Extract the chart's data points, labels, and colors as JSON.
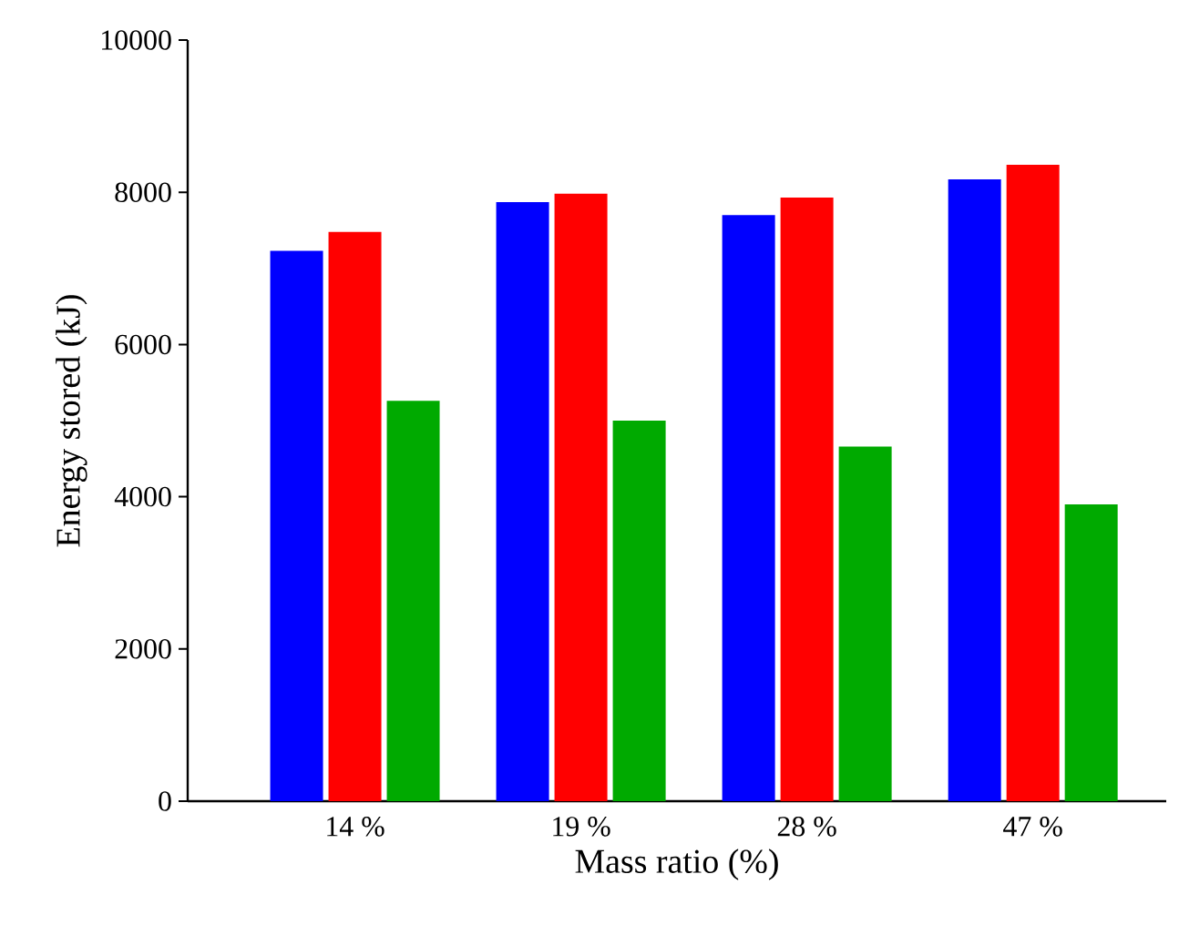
{
  "chart_data": {
    "type": "bar",
    "xlabel": "Mass ratio (%)",
    "ylabel": "Energy stored (kJ)",
    "categories": [
      "14 %",
      "19 %",
      "28 %",
      "47 %"
    ],
    "series": [
      {
        "color": "#0000ff",
        "values": [
          7230,
          7870,
          7700,
          8170
        ]
      },
      {
        "color": "#ff0000",
        "values": [
          7480,
          7980,
          7930,
          8360
        ]
      },
      {
        "color": "#00aa00",
        "values": [
          5260,
          5000,
          4660,
          3900
        ]
      }
    ],
    "ylim": [
      0,
      10000
    ],
    "yticks": [
      0,
      2000,
      4000,
      6000,
      8000,
      10000
    ],
    "grid": false
  }
}
